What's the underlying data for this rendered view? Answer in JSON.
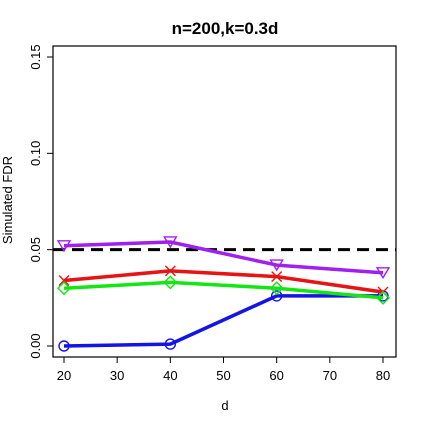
{
  "chart_data": {
    "type": "line",
    "title": "n=200,k=0.3d",
    "xlabel": "d",
    "ylabel": "Simulated FDR",
    "x": [
      20,
      40,
      60,
      80
    ],
    "xlim": [
      20,
      80
    ],
    "ylim": [
      0,
      0.15
    ],
    "xticks": [
      "20",
      "30",
      "40",
      "50",
      "60",
      "70",
      "80"
    ],
    "yticks": [
      "0.00",
      "0.05",
      "0.10",
      "0.15"
    ],
    "reference_line": {
      "y": 0.05,
      "style": "dashed",
      "color": "#000000"
    },
    "series": [
      {
        "color": "#1414e6",
        "marker": "circle",
        "values": [
          0.0,
          0.001,
          0.026,
          0.026
        ]
      },
      {
        "color": "#e61414",
        "marker": "x",
        "values": [
          0.034,
          0.039,
          0.036,
          0.028
        ]
      },
      {
        "color": "#14e614",
        "marker": "diamond",
        "values": [
          0.03,
          0.033,
          0.03,
          0.025
        ]
      },
      {
        "color": "#a020f0",
        "marker": "triangle-down",
        "values": [
          0.052,
          0.054,
          0.042,
          0.038
        ]
      }
    ]
  }
}
